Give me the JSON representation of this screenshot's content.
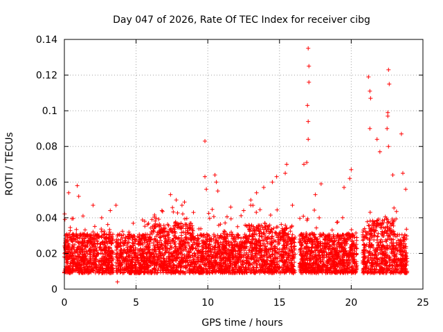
{
  "chart_data": {
    "type": "scatter",
    "title": "Day 047 of 2026, Rate Of TEC Index for receiver cibg",
    "xlabel": "GPS time / hours",
    "ylabel": "ROTI / TECUs",
    "xlim": [
      0,
      25
    ],
    "ylim": [
      0,
      0.14
    ],
    "xticks": [
      0,
      5,
      10,
      15,
      20,
      25
    ],
    "xtick_labels": [
      "0",
      "5",
      "10",
      "15",
      "20",
      "25"
    ],
    "yticks": [
      0,
      0.02,
      0.04,
      0.06,
      0.08,
      0.1,
      0.12,
      0.14
    ],
    "ytick_labels": [
      "0",
      "0.02",
      "0.04",
      "0.06",
      "0.08",
      "0.1",
      "0.12",
      "0.14"
    ],
    "grid": true,
    "marker": "+",
    "color": "#ff0000",
    "data_gaps_hours": [
      [
        3.4,
        3.6
      ],
      [
        16.1,
        16.4
      ],
      [
        20.4,
        20.8
      ]
    ],
    "series": [
      {
        "name": "ROTI",
        "points": [
          [
            0.3,
            0.054
          ],
          [
            0.9,
            0.058
          ],
          [
            1.0,
            0.052
          ],
          [
            1.3,
            0.041
          ],
          [
            2.0,
            0.047
          ],
          [
            2.6,
            0.04
          ],
          [
            3.2,
            0.044
          ],
          [
            3.7,
            0.004
          ],
          [
            3.6,
            0.047
          ],
          [
            4.5,
            0.032
          ],
          [
            5.6,
            0.038
          ],
          [
            6.8,
            0.044
          ],
          [
            7.4,
            0.053
          ],
          [
            7.8,
            0.05
          ],
          [
            8.2,
            0.047
          ],
          [
            9.0,
            0.043
          ],
          [
            9.8,
            0.083
          ],
          [
            9.8,
            0.063
          ],
          [
            9.9,
            0.056
          ],
          [
            10.5,
            0.064
          ],
          [
            10.6,
            0.06
          ],
          [
            10.7,
            0.055
          ],
          [
            11.6,
            0.046
          ],
          [
            12.5,
            0.044
          ],
          [
            13.0,
            0.05
          ],
          [
            13.4,
            0.054
          ],
          [
            13.9,
            0.057
          ],
          [
            14.5,
            0.06
          ],
          [
            14.8,
            0.063
          ],
          [
            15.5,
            0.07
          ],
          [
            15.4,
            0.065
          ],
          [
            15.9,
            0.047
          ],
          [
            16.7,
            0.07
          ],
          [
            16.9,
            0.071
          ],
          [
            17.0,
            0.135
          ],
          [
            17.05,
            0.125
          ],
          [
            17.05,
            0.116
          ],
          [
            16.95,
            0.103
          ],
          [
            17.0,
            0.094
          ],
          [
            17.0,
            0.084
          ],
          [
            17.5,
            0.053
          ],
          [
            17.9,
            0.059
          ],
          [
            19.5,
            0.057
          ],
          [
            19.9,
            0.062
          ],
          [
            20.0,
            0.067
          ],
          [
            21.2,
            0.119
          ],
          [
            21.3,
            0.111
          ],
          [
            21.35,
            0.107
          ],
          [
            21.3,
            0.09
          ],
          [
            21.8,
            0.084
          ],
          [
            22.0,
            0.077
          ],
          [
            22.6,
            0.123
          ],
          [
            22.65,
            0.115
          ],
          [
            22.55,
            0.099
          ],
          [
            22.55,
            0.097
          ],
          [
            22.5,
            0.09
          ],
          [
            22.6,
            0.08
          ],
          [
            22.9,
            0.064
          ],
          [
            23.5,
            0.087
          ],
          [
            23.6,
            0.065
          ],
          [
            23.8,
            0.056
          ]
        ]
      }
    ]
  }
}
